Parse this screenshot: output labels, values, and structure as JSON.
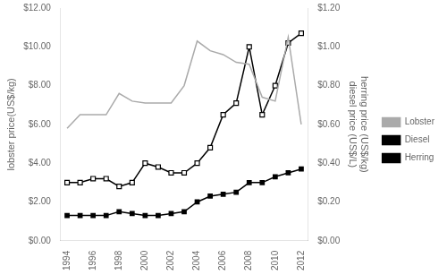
{
  "chart_data": {
    "type": "line",
    "x": [
      1994,
      1995,
      1996,
      1997,
      1998,
      1999,
      2000,
      2001,
      2002,
      2003,
      2004,
      2005,
      2006,
      2007,
      2008,
      2009,
      2010,
      2011,
      2012
    ],
    "xlim": [
      1993.5,
      2012.5
    ],
    "xticks": [
      1994,
      1996,
      1998,
      2000,
      2002,
      2004,
      2006,
      2008,
      2010,
      2012
    ],
    "ylabel": "lobster price(US$/kg)",
    "y2label": "herring price (US$/kg)\ndiesel price (US$/L)",
    "ylim": [
      0,
      12
    ],
    "yticks": [
      {
        "value": 0,
        "label": "$0.00"
      },
      {
        "value": 2,
        "label": "$2.00"
      },
      {
        "value": 4,
        "label": "$4.00"
      },
      {
        "value": 6,
        "label": "$6.00"
      },
      {
        "value": 8,
        "label": "$8.00"
      },
      {
        "value": 10,
        "label": "$10.00"
      },
      {
        "value": 12,
        "label": "$12.00"
      }
    ],
    "y2lim": [
      0,
      1.2
    ],
    "y2ticks": [
      {
        "value": 0,
        "label": "$0.00"
      },
      {
        "value": 0.2,
        "label": "$0.20"
      },
      {
        "value": 0.4,
        "label": "$0.40"
      },
      {
        "value": 0.6,
        "label": "$0.60"
      },
      {
        "value": 0.8,
        "label": "$0.80"
      },
      {
        "value": 1.0,
        "label": "$1.00"
      },
      {
        "value": 1.2,
        "label": "$1.20"
      }
    ],
    "series": [
      {
        "name": "Lobster",
        "color": "#aaaaaa",
        "marker": "none",
        "axis": "y",
        "values": [
          5.8,
          6.5,
          6.5,
          6.5,
          7.6,
          7.2,
          7.1,
          7.1,
          7.1,
          8.0,
          10.3,
          9.8,
          9.6,
          9.2,
          9.1,
          7.4,
          7.2,
          10.5,
          6.0
        ]
      },
      {
        "name": "Diesel",
        "color": "#000000",
        "marker": "open_square",
        "axis": "y2",
        "values": [
          0.3,
          0.3,
          0.32,
          0.32,
          0.28,
          0.3,
          0.4,
          0.38,
          0.35,
          0.35,
          0.4,
          0.48,
          0.65,
          0.71,
          1.0,
          0.65,
          0.8,
          1.02,
          1.07
        ]
      },
      {
        "name": "Herring",
        "color": "#000000",
        "marker": "square",
        "axis": "y2",
        "values": [
          0.13,
          0.13,
          0.13,
          0.13,
          0.15,
          0.14,
          0.13,
          0.13,
          0.14,
          0.15,
          0.2,
          0.23,
          0.24,
          0.25,
          0.3,
          0.3,
          0.33,
          0.35,
          0.37
        ]
      }
    ],
    "grid": false,
    "legend": "right"
  }
}
